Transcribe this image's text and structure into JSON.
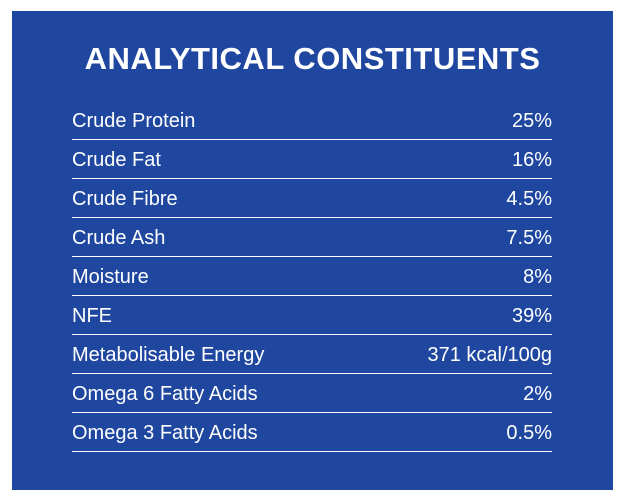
{
  "title": "ANALYTICAL CONSTITUENTS",
  "rows": [
    {
      "name": "Crude Protein",
      "value": "25%"
    },
    {
      "name": "Crude Fat",
      "value": "16%"
    },
    {
      "name": "Crude Fibre",
      "value": "4.5%"
    },
    {
      "name": "Crude Ash",
      "value": "7.5%"
    },
    {
      "name": "Moisture",
      "value": "8%"
    },
    {
      "name": "NFE",
      "value": "39%"
    },
    {
      "name": "Metabolisable Energy",
      "value": "371 kcal/100g"
    },
    {
      "name": "Omega 6 Fatty Acids",
      "value": "2%"
    },
    {
      "name": "Omega 3 Fatty Acids",
      "value": "0.5%"
    }
  ],
  "colors": {
    "background": "#1f47a0",
    "text": "#ffffff"
  }
}
